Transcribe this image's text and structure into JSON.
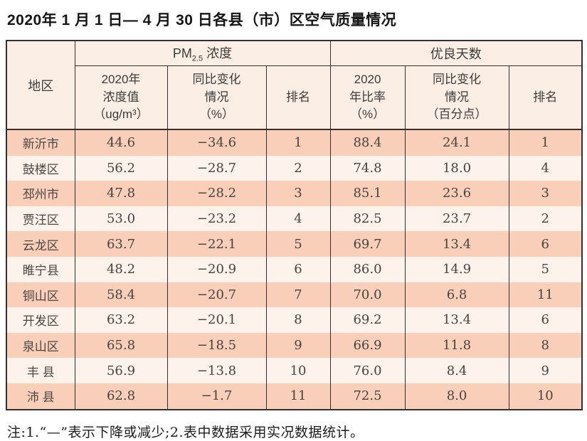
{
  "page": {
    "title": "2020年 1 月 1 日— 4 月 30 日各县（市）区空气质量情况",
    "note": "注:1.“—”表示下降或减少;2.表中数据采用实况数据统计。"
  },
  "colors": {
    "header_bg": "#fbeee4",
    "row_odd_bg": "#f9cfba",
    "row_even_bg": "#fdf3ec",
    "border": "#35302d"
  },
  "table": {
    "group": {
      "region": "地区",
      "pm25_prefix": "PM",
      "pm25_sub": "2.5",
      "pm25_suffix": " 浓度",
      "good_days": "优良天数"
    },
    "sub_headers": {
      "pm25_value": "2020年\n浓度值\n（ug/m³）",
      "pm25_change": "同比变化\n情况\n（%）",
      "pm25_rank": "排名",
      "good_rate": "2020\n年比率\n（%）",
      "good_change": "同比变化\n情况\n（百分点）",
      "good_rank": "排名"
    },
    "rows": [
      {
        "region": "新沂市",
        "pm25_value": "44.6",
        "pm25_change": "−34.6",
        "pm25_rank": "1",
        "good_rate": "88.4",
        "good_change": "24.1",
        "good_rank": "1"
      },
      {
        "region": "鼓楼区",
        "pm25_value": "56.2",
        "pm25_change": "−28.7",
        "pm25_rank": "2",
        "good_rate": "74.8",
        "good_change": "18.0",
        "good_rank": "4"
      },
      {
        "region": "邳州市",
        "pm25_value": "47.8",
        "pm25_change": "−28.2",
        "pm25_rank": "3",
        "good_rate": "85.1",
        "good_change": "23.6",
        "good_rank": "3"
      },
      {
        "region": "贾汪区",
        "pm25_value": "53.0",
        "pm25_change": "−23.2",
        "pm25_rank": "4",
        "good_rate": "82.5",
        "good_change": "23.7",
        "good_rank": "2"
      },
      {
        "region": "云龙区",
        "pm25_value": "63.7",
        "pm25_change": "−22.1",
        "pm25_rank": "5",
        "good_rate": "69.7",
        "good_change": "13.4",
        "good_rank": "6"
      },
      {
        "region": "睢宁县",
        "pm25_value": "48.2",
        "pm25_change": "−20.9",
        "pm25_rank": "6",
        "good_rate": "86.0",
        "good_change": "14.9",
        "good_rank": "5"
      },
      {
        "region": "铜山区",
        "pm25_value": "58.4",
        "pm25_change": "−20.7",
        "pm25_rank": "7",
        "good_rate": "70.0",
        "good_change": "6.8",
        "good_rank": "11"
      },
      {
        "region": "开发区",
        "pm25_value": "63.2",
        "pm25_change": "−20.1",
        "pm25_rank": "8",
        "good_rate": "69.2",
        "good_change": "13.4",
        "good_rank": "6"
      },
      {
        "region": "泉山区",
        "pm25_value": "65.8",
        "pm25_change": "−18.5",
        "pm25_rank": "9",
        "good_rate": "66.9",
        "good_change": "11.8",
        "good_rank": "8"
      },
      {
        "region": "丰 县",
        "pm25_value": "56.9",
        "pm25_change": "−13.8",
        "pm25_rank": "10",
        "good_rate": "76.0",
        "good_change": "8.4",
        "good_rank": "9"
      },
      {
        "region": "沛 县",
        "pm25_value": "62.8",
        "pm25_change": "−1.7",
        "pm25_rank": "11",
        "good_rate": "72.5",
        "good_change": "8.0",
        "good_rank": "10"
      }
    ]
  }
}
